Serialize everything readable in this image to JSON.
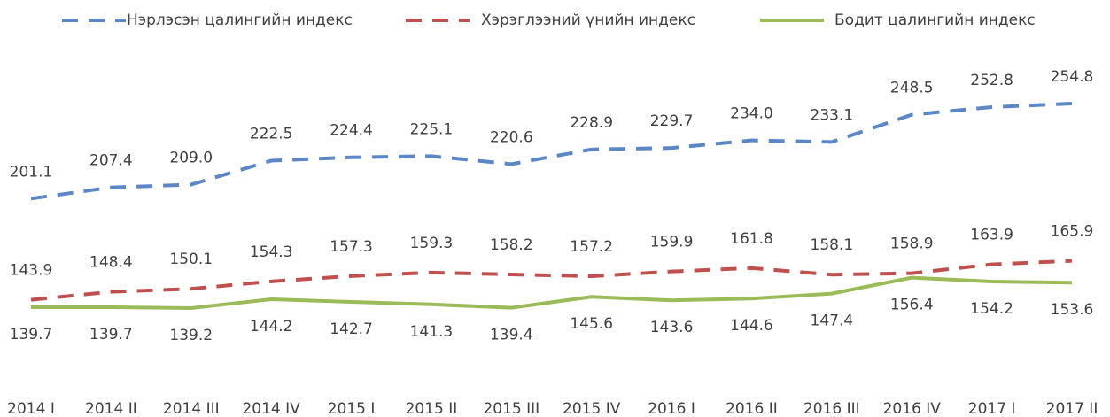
{
  "chart_data": {
    "type": "line",
    "categories": [
      "2014 I",
      "2014 II",
      "2014 III",
      "2014 IV",
      "2015 I",
      "2015 II",
      "2015 III",
      "2015 IV",
      "2016 I",
      "2016 II",
      "2016 III",
      "2016 IV",
      "2017 I",
      "2017 II"
    ],
    "series": [
      {
        "name": "Нэрлэсэн цалингийн индекс",
        "color": "#5b87c6",
        "dashed": true,
        "values": [
          201.1,
          207.4,
          209.0,
          222.5,
          224.4,
          225.1,
          220.6,
          228.9,
          229.7,
          234.0,
          233.1,
          248.5,
          252.8,
          254.8
        ],
        "value_labels": [
          "201.1",
          "207.4",
          "209.0",
          "222.5",
          "224.4",
          "225.1",
          "220.6",
          "228.9",
          "229.7",
          "234.0",
          "233.1",
          "248.5",
          "252.8",
          "254.8"
        ]
      },
      {
        "name": "Хэрэглээний үнийн индекс",
        "color": "#c0504d",
        "dashed": true,
        "values": [
          143.9,
          148.4,
          150.1,
          154.3,
          157.3,
          159.3,
          158.2,
          157.2,
          159.9,
          161.8,
          158.1,
          158.9,
          163.9,
          165.9
        ]
      },
      {
        "name": "Бодит цалингийн индекс",
        "color": "#9bbb59",
        "dashed": false,
        "values": [
          139.7,
          139.7,
          139.2,
          144.2,
          142.7,
          141.3,
          139.4,
          145.6,
          143.6,
          144.6,
          147.4,
          156.4,
          154.2,
          153.6
        ]
      }
    ],
    "legend": "top"
  }
}
